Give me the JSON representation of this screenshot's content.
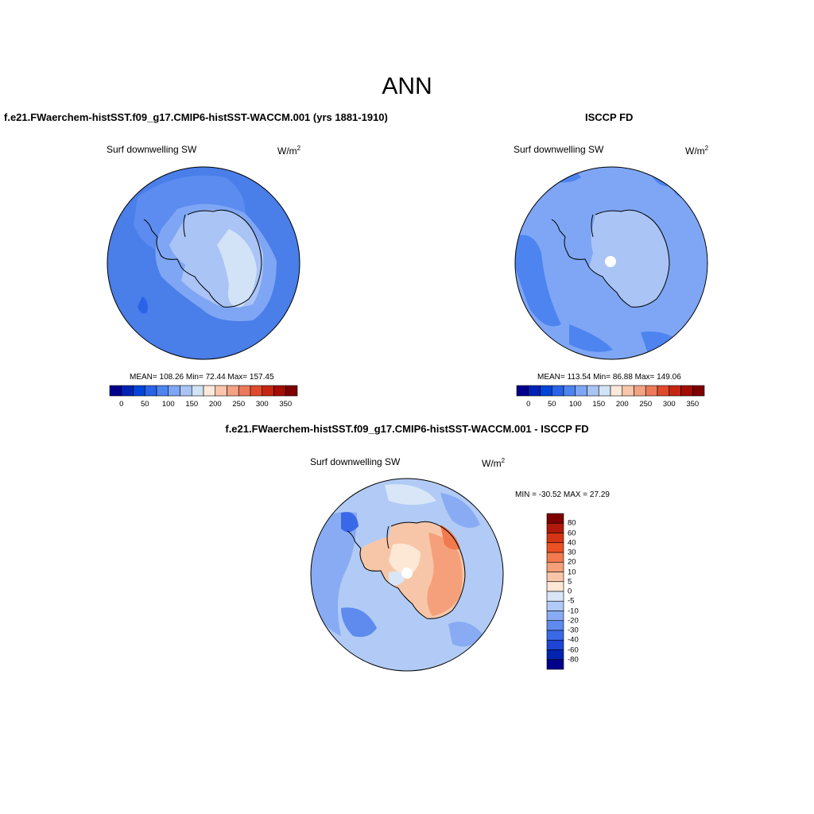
{
  "figure": {
    "title": "ANN"
  },
  "panels": [
    {
      "id": "model",
      "title": "f.e21.FWaerchem-histSST.f09_g17.CMIP6-histSST-WACCM.001 (yrs 1881-1910)",
      "variable": "Surf downwelling SW",
      "units": "W/m",
      "units_sup": "2",
      "stats": "MEAN= 108.26  Min=  72.44  Max= 157.45",
      "mean": 108.26,
      "min": 72.44,
      "max": 157.45
    },
    {
      "id": "obs",
      "title": "ISCCP FD",
      "variable": "Surf downwelling SW",
      "units": "W/m",
      "units_sup": "2",
      "stats": "MEAN= 113.54  Min=  86.88  Max= 149.06",
      "mean": 113.54,
      "min": 86.88,
      "max": 149.06
    },
    {
      "id": "diff",
      "title": "f.e21.FWaerchem-histSST.f09_g17.CMIP6-histSST-WACCM.001 - ISCCP FD",
      "variable": "Surf downwelling SW",
      "units": "W/m",
      "units_sup": "2",
      "stats": "MIN = -30.52 MAX =  27.29",
      "min": -30.52,
      "max": 27.29
    }
  ],
  "colorbar_main": {
    "tick_labels": [
      "0",
      "50",
      "100",
      "150",
      "200",
      "250",
      "300",
      "350"
    ],
    "colors": [
      "#00008b",
      "#0022b5",
      "#0044d8",
      "#2a62e8",
      "#4d84f0",
      "#7ea6f4",
      "#a9c4f5",
      "#d2e3f8",
      "#fde9da",
      "#f9c6ac",
      "#f3a283",
      "#ea7a5a",
      "#e04a2c",
      "#c42612",
      "#a20d06",
      "#7e0000"
    ]
  },
  "colorbar_diff": {
    "tick_labels": [
      "80",
      "60",
      "40",
      "30",
      "20",
      "10",
      "5",
      "0",
      "-5",
      "-10",
      "-20",
      "-30",
      "-40",
      "-60",
      "-80"
    ],
    "colors": [
      "#7e0000",
      "#b01a0a",
      "#d43515",
      "#ec5123",
      "#f27a4e",
      "#f5a07b",
      "#f7c6a8",
      "#fde7d5",
      "#d9e6f8",
      "#b1cbf6",
      "#88abf3",
      "#5f8bef",
      "#3a69e8",
      "#1c45d6",
      "#0024b0",
      "#00008b"
    ]
  },
  "colors": {
    "background": "#ffffff",
    "ocean_model": "#4a7ee8",
    "coast": "#000000"
  }
}
